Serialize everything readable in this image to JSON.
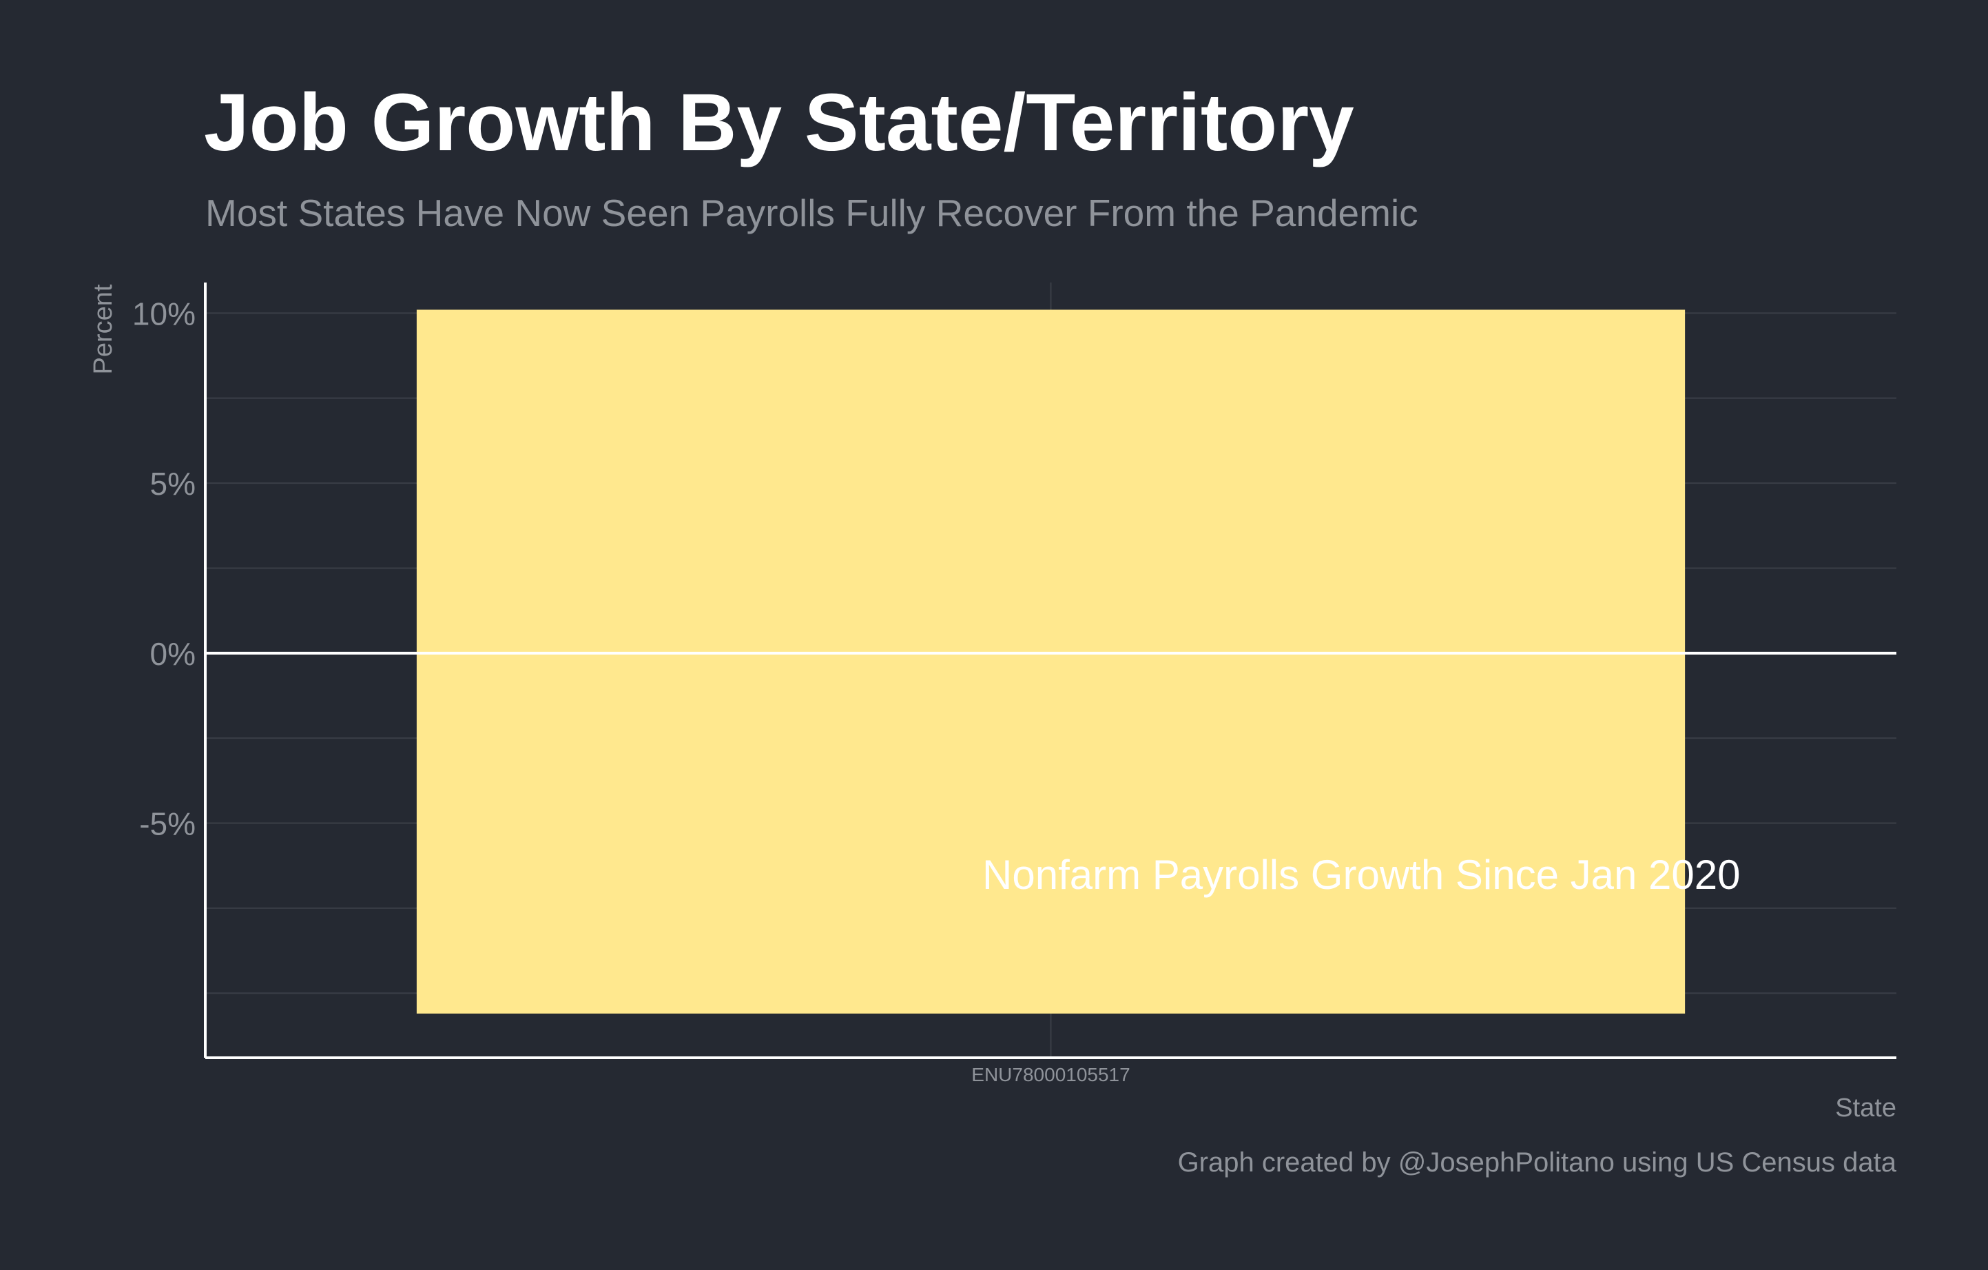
{
  "chart_data": {
    "type": "bar",
    "title": "Job Growth By State/Territory",
    "subtitle": "Most States Have Now Seen Payrolls Fully Recover From the Pandemic",
    "xlabel": "State",
    "ylabel": "Percent",
    "caption": "Graph created by @JosephPolitano using US Census data",
    "annotation": "Nonfarm Payrolls Growth Since Jan 2020",
    "categories": [
      "ENU78000105517"
    ],
    "bars": [
      {
        "category": "ENU78000105517",
        "ymin": -10.6,
        "ymax": 10.1
      }
    ],
    "ylim": [
      -11.9,
      10.9
    ],
    "yticks": [
      {
        "value": 10,
        "label": "10%"
      },
      {
        "value": 5,
        "label": "5%"
      },
      {
        "value": 0,
        "label": "0%"
      },
      {
        "value": -5,
        "label": "-5%"
      }
    ],
    "yminor": [
      7.5,
      2.5,
      -2.5,
      -7.5,
      -10
    ],
    "grid": true,
    "colors": {
      "background": "#252932",
      "bar": "#ffe88e",
      "grid": "#3a3e47",
      "axis": "#ffffff",
      "zero_line": "#ffffff",
      "text_muted": "#8f939a",
      "text_main": "#ffffff"
    }
  }
}
